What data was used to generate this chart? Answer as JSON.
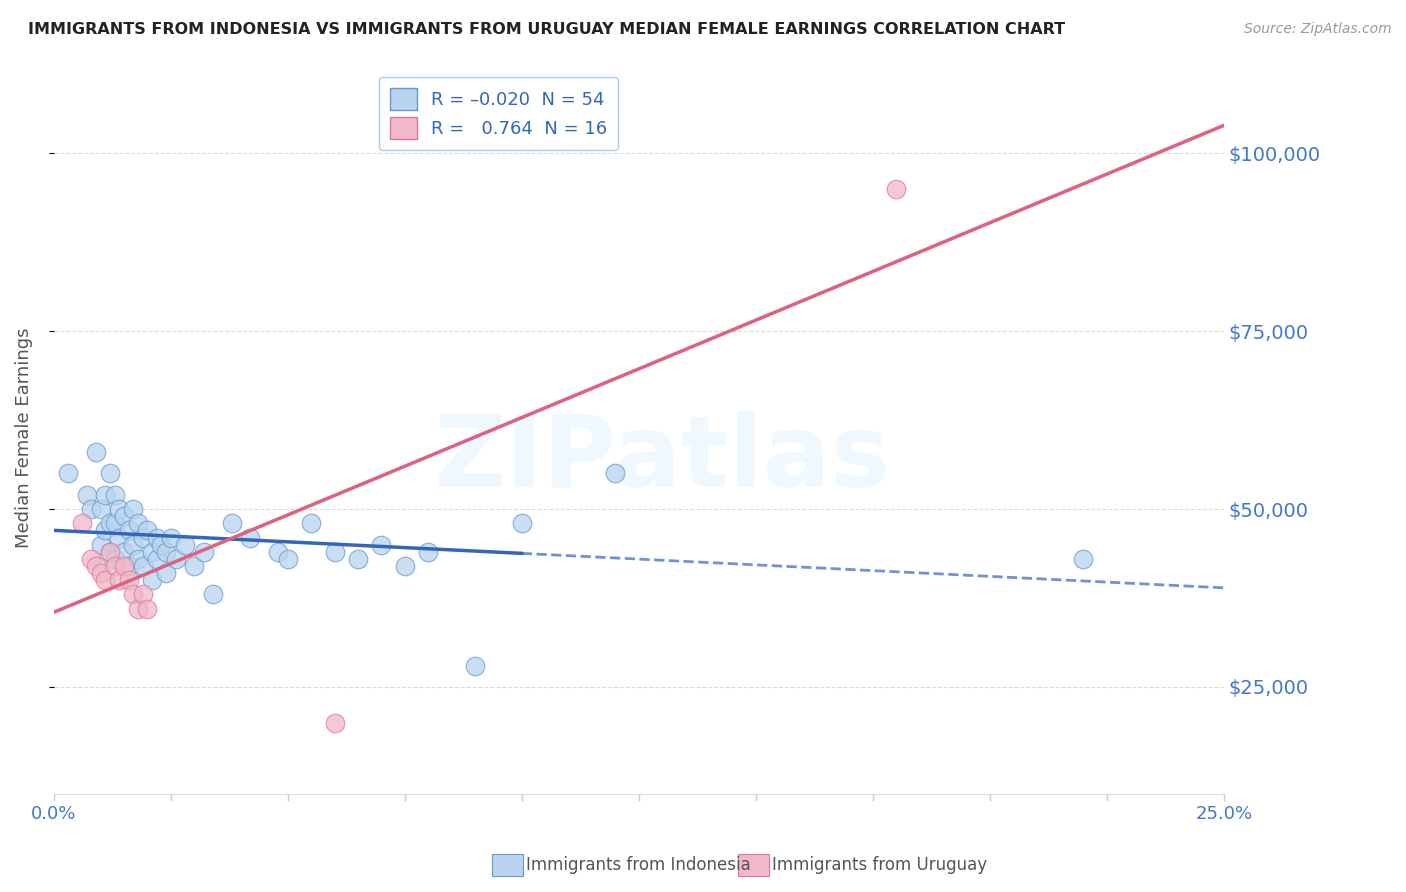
{
  "title": "IMMIGRANTS FROM INDONESIA VS IMMIGRANTS FROM URUGUAY MEDIAN FEMALE EARNINGS CORRELATION CHART",
  "source": "Source: ZipAtlas.com",
  "ylabel": "Median Female Earnings",
  "ytick_labels": [
    "$25,000",
    "$50,000",
    "$75,000",
    "$100,000"
  ],
  "ytick_values": [
    25000,
    50000,
    75000,
    100000
  ],
  "xlim": [
    0.0,
    0.25
  ],
  "ylim": [
    10000,
    110000
  ],
  "indonesia_color": "#b8d4f0",
  "indonesia_edge": "#6699cc",
  "uruguay_color": "#f0b8c8",
  "uruguay_edge": "#dd7799",
  "background_color": "#ffffff",
  "grid_color": "#cccccc",
  "watermark_text": "ZIPatlas",
  "indonesia_points": [
    [
      0.003,
      55000
    ],
    [
      0.007,
      52000
    ],
    [
      0.008,
      50000
    ],
    [
      0.009,
      58000
    ],
    [
      0.01,
      50000
    ],
    [
      0.01,
      45000
    ],
    [
      0.011,
      52000
    ],
    [
      0.011,
      47000
    ],
    [
      0.012,
      55000
    ],
    [
      0.012,
      48000
    ],
    [
      0.012,
      44000
    ],
    [
      0.013,
      52000
    ],
    [
      0.013,
      48000
    ],
    [
      0.013,
      43000
    ],
    [
      0.014,
      50000
    ],
    [
      0.014,
      46000
    ],
    [
      0.015,
      49000
    ],
    [
      0.015,
      44000
    ],
    [
      0.016,
      47000
    ],
    [
      0.016,
      42000
    ],
    [
      0.017,
      50000
    ],
    [
      0.017,
      45000
    ],
    [
      0.018,
      48000
    ],
    [
      0.018,
      43000
    ],
    [
      0.019,
      46000
    ],
    [
      0.019,
      42000
    ],
    [
      0.02,
      47000
    ],
    [
      0.021,
      44000
    ],
    [
      0.021,
      40000
    ],
    [
      0.022,
      46000
    ],
    [
      0.022,
      43000
    ],
    [
      0.023,
      45000
    ],
    [
      0.024,
      44000
    ],
    [
      0.024,
      41000
    ],
    [
      0.025,
      46000
    ],
    [
      0.026,
      43000
    ],
    [
      0.028,
      45000
    ],
    [
      0.03,
      42000
    ],
    [
      0.032,
      44000
    ],
    [
      0.034,
      38000
    ],
    [
      0.038,
      48000
    ],
    [
      0.042,
      46000
    ],
    [
      0.048,
      44000
    ],
    [
      0.05,
      43000
    ],
    [
      0.055,
      48000
    ],
    [
      0.06,
      44000
    ],
    [
      0.065,
      43000
    ],
    [
      0.07,
      45000
    ],
    [
      0.075,
      42000
    ],
    [
      0.08,
      44000
    ],
    [
      0.09,
      28000
    ],
    [
      0.1,
      48000
    ],
    [
      0.12,
      55000
    ],
    [
      0.22,
      43000
    ]
  ],
  "uruguay_points": [
    [
      0.006,
      48000
    ],
    [
      0.008,
      43000
    ],
    [
      0.009,
      42000
    ],
    [
      0.01,
      41000
    ],
    [
      0.011,
      40000
    ],
    [
      0.012,
      44000
    ],
    [
      0.013,
      42000
    ],
    [
      0.014,
      40000
    ],
    [
      0.015,
      42000
    ],
    [
      0.016,
      40000
    ],
    [
      0.017,
      38000
    ],
    [
      0.018,
      36000
    ],
    [
      0.019,
      38000
    ],
    [
      0.02,
      36000
    ],
    [
      0.06,
      20000
    ],
    [
      0.18,
      95000
    ]
  ],
  "indonesia_line_color": "#3366bb",
  "uruguay_line_color": "#e06080",
  "indonesia_R": -0.02,
  "uruguay_R": 0.764,
  "title_color": "#222222",
  "source_color": "#999999",
  "tick_label_color": "#4477cc",
  "ylabel_color": "#555555",
  "legend_R_color": "#3366bb",
  "legend_N_color": "#3366bb"
}
